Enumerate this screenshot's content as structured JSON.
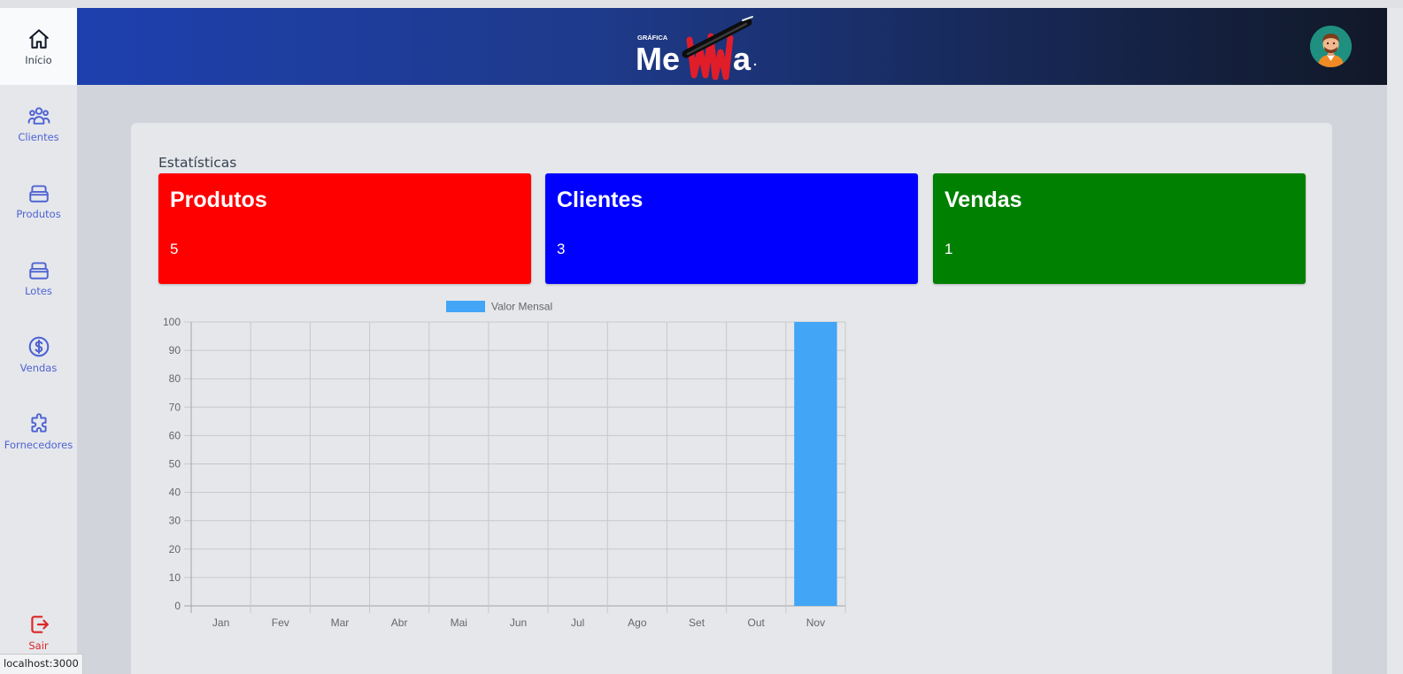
{
  "sidebar": {
    "items": [
      {
        "label": "Início",
        "icon": "home-icon"
      },
      {
        "label": "Clientes",
        "icon": "users-icon"
      },
      {
        "label": "Produtos",
        "icon": "box-icon"
      },
      {
        "label": "Lotes",
        "icon": "box-icon"
      },
      {
        "label": "Vendas",
        "icon": "dollar-icon"
      },
      {
        "label": "Fornecedores",
        "icon": "puzzle-icon"
      }
    ],
    "logout_label": "Sair"
  },
  "header": {
    "logo_small": "GRÁFICA",
    "logo_big_left": "Me",
    "logo_big_right": "a"
  },
  "status_url": "localhost:3000",
  "main": {
    "title": "Estatísticas",
    "stats": [
      {
        "title": "Produtos",
        "value": "5",
        "color": "#ff0000"
      },
      {
        "title": "Clientes",
        "value": "3",
        "color": "#0000ff"
      },
      {
        "title": "Vendas",
        "value": "1",
        "color": "#008000"
      }
    ]
  },
  "chart_data": {
    "type": "bar",
    "categories": [
      "Jan",
      "Fev",
      "Mar",
      "Abr",
      "Mai",
      "Jun",
      "Jul",
      "Ago",
      "Set",
      "Out",
      "Nov"
    ],
    "series": [
      {
        "name": "Valor Mensal",
        "values": [
          0,
          0,
          0,
          0,
          0,
          0,
          0,
          0,
          0,
          0,
          100
        ],
        "color": "#42a5f5"
      }
    ],
    "yticks": [
      "0",
      "10",
      "20",
      "30",
      "40",
      "50",
      "60",
      "70",
      "80",
      "90",
      "100"
    ],
    "ylim": [
      0,
      100
    ],
    "grid": true,
    "legend": "top"
  }
}
